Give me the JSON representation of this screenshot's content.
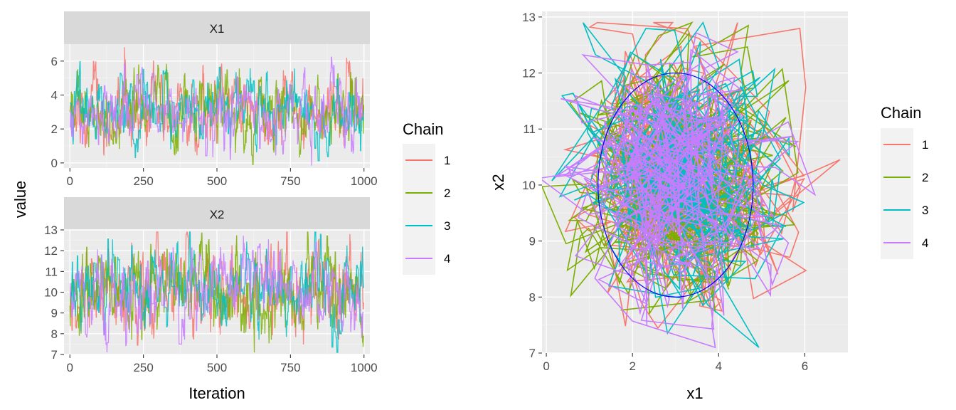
{
  "colors": {
    "chain_1": "#F8766D",
    "chain_2": "#7CAE00",
    "chain_3": "#00BFC4",
    "chain_4": "#C77CFF",
    "ellipse": "#0000FF",
    "panel_bg": "#EBEBEB",
    "strip_bg": "#D9D9D9",
    "grid": "#FFFFFF"
  },
  "chart_data": [
    {
      "type": "line",
      "description": "trace plot",
      "facets": [
        {
          "label": "X1",
          "ylim": [
            -0.3,
            7
          ],
          "yticks": [
            0,
            2,
            4,
            6
          ],
          "mean": 3.0,
          "sd": 0.9
        },
        {
          "label": "X2",
          "ylim": [
            7,
            13
          ],
          "yticks": [
            7,
            8,
            9,
            10,
            11,
            12,
            13
          ],
          "mean": 10.0,
          "sd": 0.9
        }
      ],
      "xlabel": "Iteration",
      "ylabel": "value",
      "xlim": [
        -20,
        1020
      ],
      "xticks": [
        0,
        250,
        500,
        750,
        1000
      ],
      "n_iterations": 1000,
      "series": [
        {
          "name": "1",
          "color": "#F8766D"
        },
        {
          "name": "2",
          "color": "#7CAE00"
        },
        {
          "name": "3",
          "color": "#00BFC4"
        },
        {
          "name": "4",
          "color": "#C77CFF"
        }
      ],
      "legend": {
        "title": "Chain",
        "placement": "right"
      },
      "grid": true
    },
    {
      "type": "line",
      "description": "joint path of x1 vs x2 per chain",
      "xlabel": "x1",
      "ylabel": "x2",
      "xlim": [
        -0.1,
        7
      ],
      "ylim": [
        7,
        13.1
      ],
      "xticks": [
        0,
        2,
        4,
        6
      ],
      "yticks": [
        7,
        8,
        9,
        10,
        11,
        12,
        13
      ],
      "ellipse": {
        "center": [
          3.0,
          10.0
        ],
        "radius_x": 1.8,
        "radius_y": 2.0
      },
      "series": [
        {
          "name": "1",
          "color": "#F8766D"
        },
        {
          "name": "2",
          "color": "#7CAE00"
        },
        {
          "name": "3",
          "color": "#00BFC4"
        },
        {
          "name": "4",
          "color": "#C77CFF"
        }
      ],
      "legend": {
        "title": "Chain",
        "placement": "right"
      },
      "grid": true
    }
  ]
}
